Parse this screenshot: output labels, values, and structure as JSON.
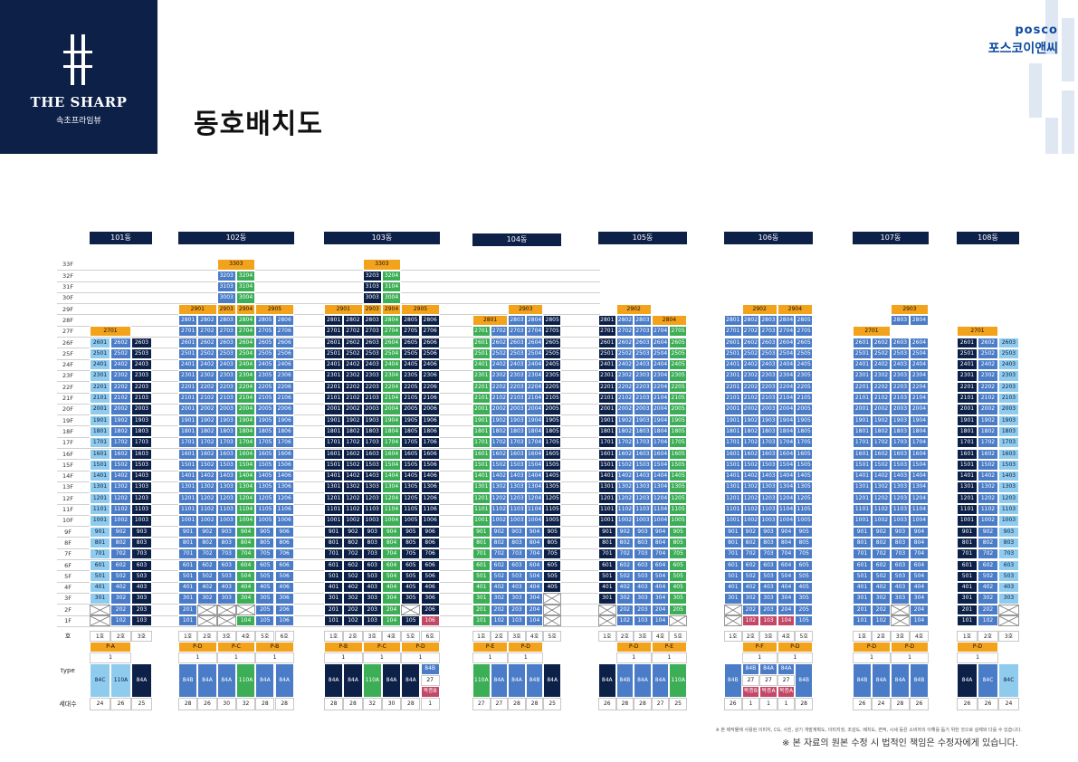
{
  "header": {
    "logo_main": "THE SHARP",
    "logo_sub": "속초프라임뷰",
    "title": "동호배치도",
    "posco_en": "posco",
    "posco_ko": "포스코이앤씨"
  },
  "floors": [
    "33F",
    "32F",
    "31F",
    "30F",
    "29F",
    "28F",
    "27F",
    "26F",
    "25F",
    "24F",
    "23F",
    "22F",
    "21F",
    "20F",
    "19F",
    "18F",
    "17F",
    "16F",
    "15F",
    "14F",
    "13F",
    "12F",
    "11F",
    "10F",
    "9F",
    "8F",
    "7F",
    "6F",
    "5F",
    "4F",
    "3F",
    "2F",
    "1F"
  ],
  "footer_labels": {
    "ho": "호",
    "type": "type",
    "count": "세대수"
  },
  "notes": {
    "small": "※ 본 제작물에 사용된 이미지, CG, 사진, 상기 개발계획도, 이미지컷, 조감도, 배치도, 면적, 시세 등은 소비자의 이해를 돕기 위한 것으로 실제와 다를 수 있습니다.",
    "main": "※ 본 자료의 원본 수정 시 법적인 책임은 수정자에게 있습니다."
  },
  "colors": {
    "navy": "#0d2048",
    "light_blue": "#8fcbec",
    "mid_blue": "#4a7cc7",
    "green": "#3cae55",
    "orange": "#f3a21b",
    "red": "#c34767"
  },
  "buildings": [
    {
      "name": "101동",
      "lines": 3,
      "colors": [
        "ca",
        "cb",
        "cd"
      ],
      "top": 26,
      "ho_labels": [
        "1호",
        "2호",
        "3호"
      ],
      "penthouses": [
        {
          "floor": 27,
          "from": 0,
          "span": 2,
          "label": "2701"
        }
      ],
      "empties": [
        [
          1,
          0
        ],
        [
          2,
          0
        ]
      ],
      "reds": [],
      "sections": [
        {
          "from": 0,
          "span": 2,
          "label": "P-A"
        }
      ],
      "ones": [
        {
          "from": 0,
          "span": 2,
          "label": "1"
        }
      ],
      "types": [
        {
          "from": 0,
          "span": 1,
          "color": "ca",
          "label": "84C"
        },
        {
          "from": 1,
          "span": 1,
          "color": "ca",
          "label": "110A"
        },
        {
          "from": 2,
          "span": 1,
          "color": "cd",
          "label": "84A"
        }
      ],
      "counts": [
        "24",
        "26",
        "25"
      ]
    },
    {
      "name": "102동",
      "lines": 6,
      "colors": [
        "cb",
        "cb",
        "cb",
        "cc",
        "cb",
        "cb"
      ],
      "top": 28,
      "ho_labels": [
        "1호",
        "2호",
        "3호",
        "4호",
        "5호",
        "6호"
      ],
      "penthouses": [
        {
          "floor": 33,
          "from": 2,
          "span": 2,
          "label": "3303"
        },
        {
          "floor": 29,
          "from": 0,
          "span": 2,
          "label": "2901"
        },
        {
          "floor": 29,
          "from": 2,
          "span": 1,
          "label": "2903"
        },
        {
          "floor": 29,
          "from": 3,
          "span": 1,
          "label": "2904"
        },
        {
          "floor": 29,
          "from": 4,
          "span": 2,
          "label": "2905"
        }
      ],
      "towers": [
        {
          "from": 2,
          "floors": [
            30,
            31,
            32
          ]
        }
      ],
      "empties": [
        [
          1,
          1
        ],
        [
          1,
          2
        ],
        [
          2,
          1
        ],
        [
          2,
          2
        ],
        [
          2,
          3
        ]
      ],
      "reds": [],
      "sections": [
        {
          "from": 0,
          "span": 2,
          "label": "P-D"
        },
        {
          "from": 2,
          "span": 2,
          "label": "P-C"
        },
        {
          "from": 4,
          "span": 2,
          "label": "P-B"
        }
      ],
      "ones": [
        {
          "from": 0,
          "span": 2,
          "label": "1"
        },
        {
          "from": 2,
          "span": 2,
          "label": "1"
        },
        {
          "from": 4,
          "span": 2,
          "label": "1"
        }
      ],
      "types": [
        {
          "from": 0,
          "span": 1,
          "color": "cb",
          "label": "84B"
        },
        {
          "from": 1,
          "span": 1,
          "color": "cb",
          "label": "84A"
        },
        {
          "from": 2,
          "span": 1,
          "color": "cb",
          "label": "84A"
        },
        {
          "from": 3,
          "span": 1,
          "color": "cc",
          "label": "110A"
        },
        {
          "from": 4,
          "span": 1,
          "color": "cb",
          "label": "84A"
        },
        {
          "from": 5,
          "span": 1,
          "color": "cb",
          "label": "84A"
        }
      ],
      "counts": [
        "28",
        "26",
        "30",
        "32",
        "28",
        "28"
      ]
    },
    {
      "name": "103동",
      "lines": 6,
      "colors": [
        "cd",
        "cd",
        "cd",
        "cc",
        "cd",
        "cd"
      ],
      "top": 28,
      "ho_labels": [
        "1호",
        "2호",
        "3호",
        "4호",
        "5호",
        "6호"
      ],
      "penthouses": [
        {
          "floor": 33,
          "from": 2,
          "span": 2,
          "label": "3303"
        },
        {
          "floor": 29,
          "from": 0,
          "span": 2,
          "label": "2901"
        },
        {
          "floor": 29,
          "from": 2,
          "span": 1,
          "label": "2903"
        },
        {
          "floor": 29,
          "from": 3,
          "span": 1,
          "label": "2904"
        },
        {
          "floor": 29,
          "from": 4,
          "span": 2,
          "label": "2905"
        }
      ],
      "towers": [
        {
          "from": 2,
          "floors": [
            30,
            31,
            32
          ]
        }
      ],
      "empties": [
        [
          2,
          4
        ]
      ],
      "reds": [
        [
          1,
          5
        ]
      ],
      "sections": [
        {
          "from": 0,
          "span": 2,
          "label": "P-B"
        },
        {
          "from": 2,
          "span": 2,
          "label": "P-C"
        },
        {
          "from": 4,
          "span": 2,
          "label": "P-D"
        }
      ],
      "ones": [
        {
          "from": 0,
          "span": 2,
          "label": "1"
        },
        {
          "from": 2,
          "span": 2,
          "label": "1"
        },
        {
          "from": 4,
          "span": 2,
          "label": "1"
        }
      ],
      "types": [
        {
          "from": 0,
          "span": 1,
          "color": "cd",
          "label": "84A"
        },
        {
          "from": 1,
          "span": 1,
          "color": "cd",
          "label": "84A"
        },
        {
          "from": 2,
          "span": 1,
          "color": "cc",
          "label": "110A"
        },
        {
          "from": 3,
          "span": 1,
          "color": "cd",
          "label": "84A"
        },
        {
          "from": 4,
          "span": 1,
          "color": "cd",
          "label": "84A"
        },
        {
          "from": 5,
          "span": 1,
          "stack": [
            {
              "label": "84B",
              "color": "cb"
            },
            {
              "label": "27",
              "color": "ow"
            },
            {
              "label": "복증B",
              "color": "cr"
            }
          ]
        }
      ],
      "counts": [
        "28",
        "28",
        "32",
        "30",
        "28",
        "1"
      ]
    },
    {
      "name": "104동",
      "lines": 5,
      "colors": [
        "cc",
        "cb",
        "cb",
        "cb",
        "cd"
      ],
      "top": 28,
      "ho_labels": [
        "1호",
        "2호",
        "3호",
        "4호",
        "5호"
      ],
      "penthouses": [
        {
          "floor": 28,
          "from": 0,
          "span": 2,
          "label": "2801"
        },
        {
          "floor": 29,
          "from": 2,
          "span": 2,
          "label": "2903"
        }
      ],
      "empties": [
        [
          3,
          4
        ],
        [
          2,
          4
        ],
        [
          1,
          4
        ]
      ],
      "reds": [],
      "sections": [
        {
          "from": 0,
          "span": 2,
          "label": "P-E"
        },
        {
          "from": 2,
          "span": 2,
          "label": "P-D"
        }
      ],
      "ones": [
        {
          "from": 0,
          "span": 2,
          "label": "1"
        },
        {
          "from": 2,
          "span": 2,
          "label": "1"
        }
      ],
      "types": [
        {
          "from": 0,
          "span": 1,
          "color": "cc",
          "label": "110A"
        },
        {
          "from": 1,
          "span": 1,
          "color": "cb",
          "label": "84A"
        },
        {
          "from": 2,
          "span": 1,
          "color": "cb",
          "label": "84A"
        },
        {
          "from": 3,
          "span": 1,
          "color": "cb",
          "label": "84B"
        },
        {
          "from": 4,
          "span": 1,
          "color": "cd",
          "label": "84A"
        }
      ],
      "counts": [
        "27",
        "27",
        "28",
        "28",
        "25"
      ]
    },
    {
      "name": "105동",
      "lines": 5,
      "colors": [
        "cd",
        "cb",
        "cb",
        "cb",
        "cc"
      ],
      "top": 28,
      "ho_labels": [
        "1호",
        "2호",
        "3호",
        "4호",
        "5호"
      ],
      "penthouses": [
        {
          "floor": 29,
          "from": 1,
          "span": 2,
          "label": "2902"
        },
        {
          "floor": 28,
          "from": 3,
          "span": 2,
          "label": "2804"
        }
      ],
      "empties": [
        [
          2,
          0
        ],
        [
          1,
          0
        ],
        [
          1,
          4
        ]
      ],
      "reds": [],
      "sections": [
        {
          "from": 1,
          "span": 2,
          "label": "P-D"
        },
        {
          "from": 3,
          "span": 2,
          "label": "P-E"
        }
      ],
      "ones": [
        {
          "from": 1,
          "span": 2,
          "label": "1"
        },
        {
          "from": 3,
          "span": 2,
          "label": "1"
        }
      ],
      "types": [
        {
          "from": 0,
          "span": 1,
          "color": "cd",
          "label": "84A"
        },
        {
          "from": 1,
          "span": 1,
          "color": "cb",
          "label": "84B"
        },
        {
          "from": 2,
          "span": 1,
          "color": "cb",
          "label": "84A"
        },
        {
          "from": 3,
          "span": 1,
          "color": "cb",
          "label": "84A"
        },
        {
          "from": 4,
          "span": 1,
          "color": "cc",
          "label": "110A"
        }
      ],
      "counts": [
        "26",
        "28",
        "28",
        "27",
        "25"
      ]
    },
    {
      "name": "106동",
      "lines": 5,
      "colors": [
        "cb",
        "cb",
        "cb",
        "cb",
        "cb"
      ],
      "top": 28,
      "ho_labels": [
        "1호",
        "2호",
        "3호",
        "4호",
        "5호"
      ],
      "penthouses": [
        {
          "floor": 29,
          "from": 1,
          "span": 2,
          "label": "2902"
        },
        {
          "floor": 29,
          "from": 3,
          "span": 2,
          "label": "2904"
        }
      ],
      "empties": [
        [
          2,
          0
        ],
        [
          1,
          0
        ]
      ],
      "reds": [
        [
          1,
          1
        ],
        [
          1,
          2
        ],
        [
          1,
          3
        ]
      ],
      "sections": [
        {
          "from": 1,
          "span": 2,
          "label": "P-F"
        },
        {
          "from": 3,
          "span": 2,
          "label": "P-D"
        }
      ],
      "ones": [
        {
          "from": 1,
          "span": 2,
          "label": "1"
        },
        {
          "from": 3,
          "span": 2,
          "label": "1"
        }
      ],
      "types": [
        {
          "from": 0,
          "span": 1,
          "color": "cb",
          "label": "84B"
        },
        {
          "from": 1,
          "span": 1,
          "stack": [
            {
              "label": "84B",
              "color": "cb"
            },
            {
              "label": "27",
              "color": "ow"
            },
            {
              "label": "복증B",
              "color": "cr"
            }
          ]
        },
        {
          "from": 2,
          "span": 1,
          "stack": [
            {
              "label": "84A",
              "color": "cb"
            },
            {
              "label": "27",
              "color": "ow"
            },
            {
              "label": "복증A",
              "color": "cr"
            }
          ]
        },
        {
          "from": 3,
          "span": 1,
          "stack": [
            {
              "label": "84A",
              "color": "cb"
            },
            {
              "label": "27",
              "color": "ow"
            },
            {
              "label": "복증A",
              "color": "cr"
            }
          ]
        },
        {
          "from": 4,
          "span": 1,
          "color": "cb",
          "label": "84B"
        }
      ],
      "counts": [
        "26",
        "1",
        "1",
        "1",
        "28"
      ]
    },
    {
      "name": "107동",
      "lines": 4,
      "colors": [
        "cb",
        "cb",
        "cb",
        "cb"
      ],
      "top": 26,
      "ho_labels": [
        "1호",
        "2호",
        "3호",
        "4호"
      ],
      "penthouses": [
        {
          "floor": 27,
          "from": 0,
          "span": 2,
          "label": "2701"
        },
        {
          "floor": 29,
          "from": 2,
          "span": 2,
          "label": "2903"
        }
      ],
      "towers2": [
        {
          "from": 2,
          "floors": [
            28
          ]
        }
      ],
      "empties": [
        [
          2,
          2
        ],
        [
          1,
          2
        ]
      ],
      "reds": [],
      "sections": [
        {
          "from": 0,
          "span": 2,
          "label": "P-D"
        },
        {
          "from": 2,
          "span": 2,
          "label": "P-D"
        }
      ],
      "ones": [
        {
          "from": 0,
          "span": 2,
          "label": "1"
        },
        {
          "from": 2,
          "span": 2,
          "label": "1"
        }
      ],
      "types": [
        {
          "from": 0,
          "span": 1,
          "color": "cb",
          "label": "84B"
        },
        {
          "from": 1,
          "span": 1,
          "color": "cb",
          "label": "84A"
        },
        {
          "from": 2,
          "span": 1,
          "color": "cb",
          "label": "84A"
        },
        {
          "from": 3,
          "span": 1,
          "color": "cb",
          "label": "84B"
        }
      ],
      "counts": [
        "26",
        "24",
        "28",
        "26"
      ]
    },
    {
      "name": "108동",
      "lines": 3,
      "colors": [
        "cd",
        "cb",
        "ca"
      ],
      "top": 26,
      "ho_labels": [
        "1호",
        "2호",
        "3호"
      ],
      "penthouses": [
        {
          "floor": 27,
          "from": 0,
          "span": 2,
          "label": "2701"
        }
      ],
      "empties": [
        [
          1,
          2
        ],
        [
          2,
          2
        ]
      ],
      "reds": [],
      "sections": [
        {
          "from": 0,
          "span": 2,
          "label": "P-D"
        }
      ],
      "ones": [
        {
          "from": 0,
          "span": 2,
          "label": "1"
        }
      ],
      "types": [
        {
          "from": 0,
          "span": 1,
          "color": "cd",
          "label": "84A"
        },
        {
          "from": 1,
          "span": 1,
          "color": "cb",
          "label": "84C"
        },
        {
          "from": 2,
          "span": 1,
          "color": "ca",
          "label": "84C"
        }
      ],
      "counts": [
        "26",
        "26",
        "24"
      ]
    }
  ]
}
